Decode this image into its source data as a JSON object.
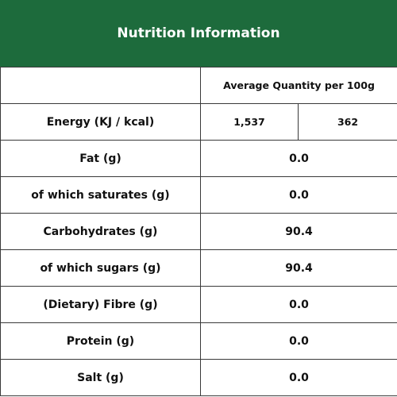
{
  "header": {
    "title": "Nutrition Information"
  },
  "table": {
    "column_header": "Average Quantity per 100g",
    "energy": {
      "label": "Energy (KJ / kcal)",
      "kj": "1,537",
      "kcal": "362"
    },
    "rows": [
      {
        "label": "Fat (g)",
        "value": "0.0"
      },
      {
        "label": "of which saturates (g)",
        "value": "0.0"
      },
      {
        "label": "Carbohydrates (g)",
        "value": "90.4"
      },
      {
        "label": "of which sugars (g)",
        "value": "90.4"
      },
      {
        "label": "(Dietary) Fibre (g)",
        "value": "0.0"
      },
      {
        "label": "Protein (g)",
        "value": "0.0"
      },
      {
        "label": "Salt (g)",
        "value": "0.0"
      }
    ]
  },
  "colors": {
    "header_bg": "#1d6b3c",
    "header_text": "#ffffff",
    "border": "#3a3a3a"
  }
}
